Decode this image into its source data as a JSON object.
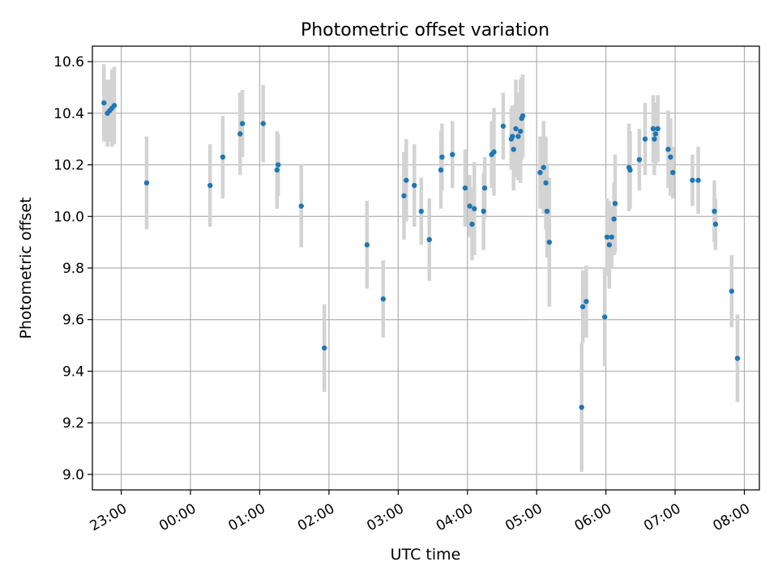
{
  "chart_data": {
    "type": "scatter",
    "title": "Photometric offset variation",
    "xlabel": "UTC time",
    "ylabel": "Photometric offset",
    "x_tick_labels": [
      "23:00",
      "00:00",
      "01:00",
      "02:00",
      "03:00",
      "04:00",
      "05:00",
      "06:00",
      "07:00",
      "08:00"
    ],
    "y_tick_labels": [
      "9.0",
      "9.2",
      "9.4",
      "9.6",
      "9.8",
      "10.0",
      "10.2",
      "10.4",
      "10.6"
    ],
    "xlim": [
      "22:35",
      "08:13"
    ],
    "ylim": [
      8.94,
      10.66
    ],
    "grid": true,
    "legend": "none",
    "colors": {
      "point": "#1f77b4",
      "errorbar": "#d3d3d3",
      "grid": "#b0b0b0"
    },
    "series": [
      {
        "x": [
          "22:45",
          "22:48",
          "22:50",
          "22:52",
          "22:54",
          "23:22",
          "00:17",
          "00:28",
          "00:43",
          "00:45",
          "01:03",
          "01:15",
          "01:16",
          "01:36",
          "01:56",
          "02:33",
          "02:47",
          "03:05",
          "03:07",
          "03:14",
          "03:20",
          "03:27",
          "03:37",
          "03:38",
          "03:47",
          "03:58",
          "04:02",
          "04:04",
          "04:06",
          "04:14",
          "04:15",
          "04:21",
          "04:23",
          "04:31",
          "04:38",
          "04:39",
          "04:40",
          "04:42",
          "04:44",
          "04:46",
          "04:47",
          "04:48",
          "05:03",
          "05:06",
          "05:08",
          "05:09",
          "05:11",
          "05:39",
          "05:40",
          "05:43",
          "05:59",
          "06:01",
          "06:03",
          "06:05",
          "06:07",
          "06:08",
          "06:20",
          "06:21",
          "06:29",
          "06:34",
          "06:41",
          "06:42",
          "06:43",
          "06:45",
          "06:54",
          "06:56",
          "06:58",
          "07:15",
          "07:20",
          "07:34",
          "07:35",
          "07:49",
          "07:54"
        ],
        "y": [
          10.44,
          10.4,
          10.41,
          10.42,
          10.43,
          10.13,
          10.12,
          10.23,
          10.32,
          10.36,
          10.36,
          10.18,
          10.2,
          10.04,
          9.49,
          9.89,
          9.68,
          10.08,
          10.14,
          10.12,
          10.02,
          9.91,
          10.18,
          10.23,
          10.24,
          10.11,
          10.04,
          9.97,
          10.03,
          10.02,
          10.11,
          10.24,
          10.25,
          10.35,
          10.3,
          10.31,
          10.26,
          10.34,
          10.31,
          10.33,
          10.38,
          10.39,
          10.17,
          10.19,
          10.13,
          10.02,
          9.9,
          9.26,
          9.65,
          9.67,
          9.61,
          9.92,
          9.89,
          9.92,
          9.99,
          10.05,
          10.19,
          10.18,
          10.22,
          10.3,
          10.34,
          10.3,
          10.32,
          10.34,
          10.26,
          10.23,
          10.17,
          10.14,
          10.14,
          10.02,
          9.97,
          9.71,
          9.45
        ],
        "err": [
          0.15,
          0.13,
          0.12,
          0.15,
          0.15,
          0.18,
          0.16,
          0.16,
          0.16,
          0.13,
          0.15,
          0.15,
          0.12,
          0.16,
          0.17,
          0.17,
          0.15,
          0.17,
          0.16,
          0.16,
          0.13,
          0.16,
          0.15,
          0.13,
          0.13,
          0.15,
          0.12,
          0.14,
          0.18,
          0.15,
          0.12,
          0.13,
          0.17,
          0.13,
          0.12,
          0.12,
          0.16,
          0.19,
          0.17,
          0.2,
          0.16,
          0.16,
          0.14,
          0.18,
          0.18,
          0.18,
          0.25,
          0.25,
          0.14,
          0.14,
          0.19,
          0.15,
          0.17,
          0.12,
          0.14,
          0.19,
          0.17,
          0.15,
          0.12,
          0.14,
          0.13,
          0.14,
          0.12,
          0.13,
          0.15,
          0.15,
          0.1,
          0.1,
          0.13,
          0.12,
          0.1,
          0.14,
          0.17
        ]
      }
    ]
  }
}
